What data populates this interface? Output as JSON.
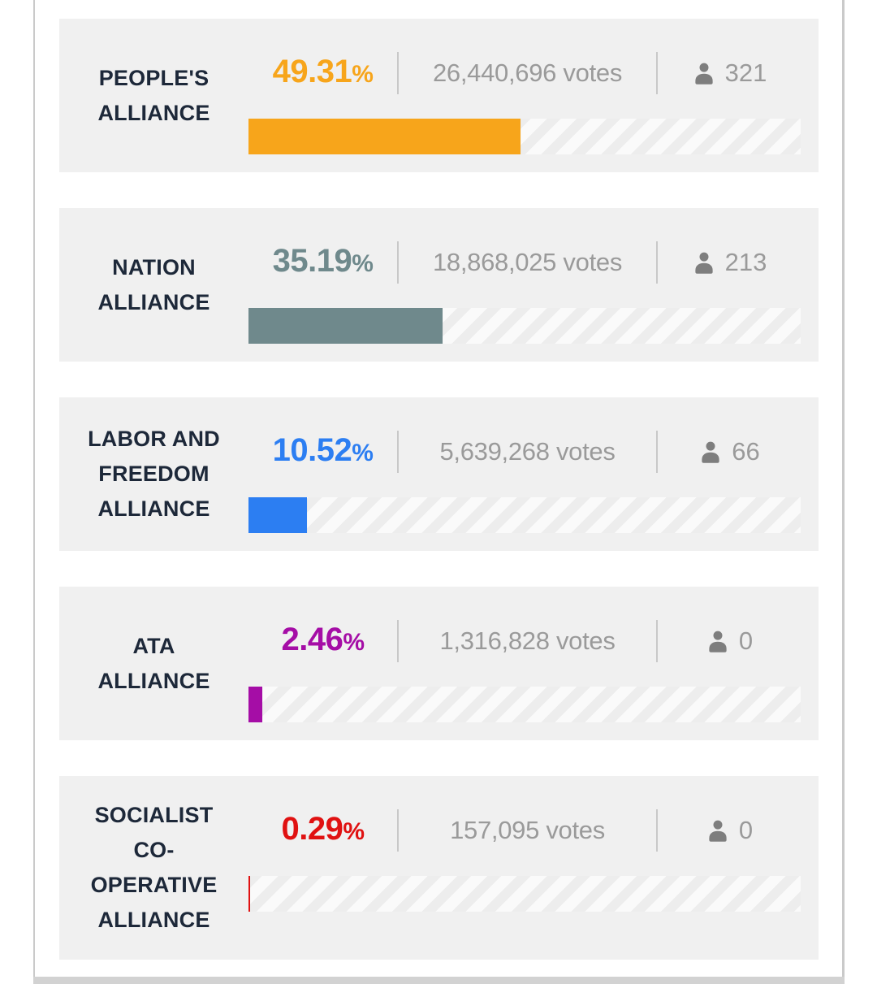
{
  "chart_data": {
    "type": "bar",
    "orientation": "horizontal",
    "title": "",
    "value_axis": "percent of votes",
    "value_range": [
      0,
      100
    ],
    "rows": [
      {
        "name": "PEOPLE'S ALLIANCE",
        "percent": 49.31,
        "percent_label": "49.31",
        "percent_sign": "%",
        "votes": 26440696,
        "votes_label": "26,440,696 votes",
        "seats": 321,
        "seats_label": "321",
        "color": "#f7a51b"
      },
      {
        "name": "NATION ALLIANCE",
        "percent": 35.19,
        "percent_label": "35.19",
        "percent_sign": "%",
        "votes": 18868025,
        "votes_label": "18,868,025 votes",
        "seats": 213,
        "seats_label": "213",
        "color": "#6f898c"
      },
      {
        "name": "LABOR AND FREEDOM ALLIANCE",
        "percent": 10.52,
        "percent_label": "10.52",
        "percent_sign": "%",
        "votes": 5639268,
        "votes_label": "5,639,268 votes",
        "seats": 66,
        "seats_label": "66",
        "color": "#2c7ef2"
      },
      {
        "name": "ATA ALLIANCE",
        "percent": 2.46,
        "percent_label": "2.46",
        "percent_sign": "%",
        "votes": 1316828,
        "votes_label": "1,316,828 votes",
        "seats": 0,
        "seats_label": "0",
        "color": "#a50da6"
      },
      {
        "name": "SOCIALIST CO-OPERATIVE ALLIANCE",
        "percent": 0.29,
        "percent_label": "0.29",
        "percent_sign": "%",
        "votes": 157095,
        "votes_label": "157,095 votes",
        "seats": 0,
        "seats_label": "0",
        "color": "#e01111"
      }
    ]
  },
  "colors": {
    "card_background": "#f0f0f0",
    "label_text": "#1d2839",
    "secondary_text": "#9a9a9a",
    "icon_gray": "#7e7e7e",
    "divider": "#c8c8c8"
  },
  "icons": {
    "seats": "person-icon"
  }
}
